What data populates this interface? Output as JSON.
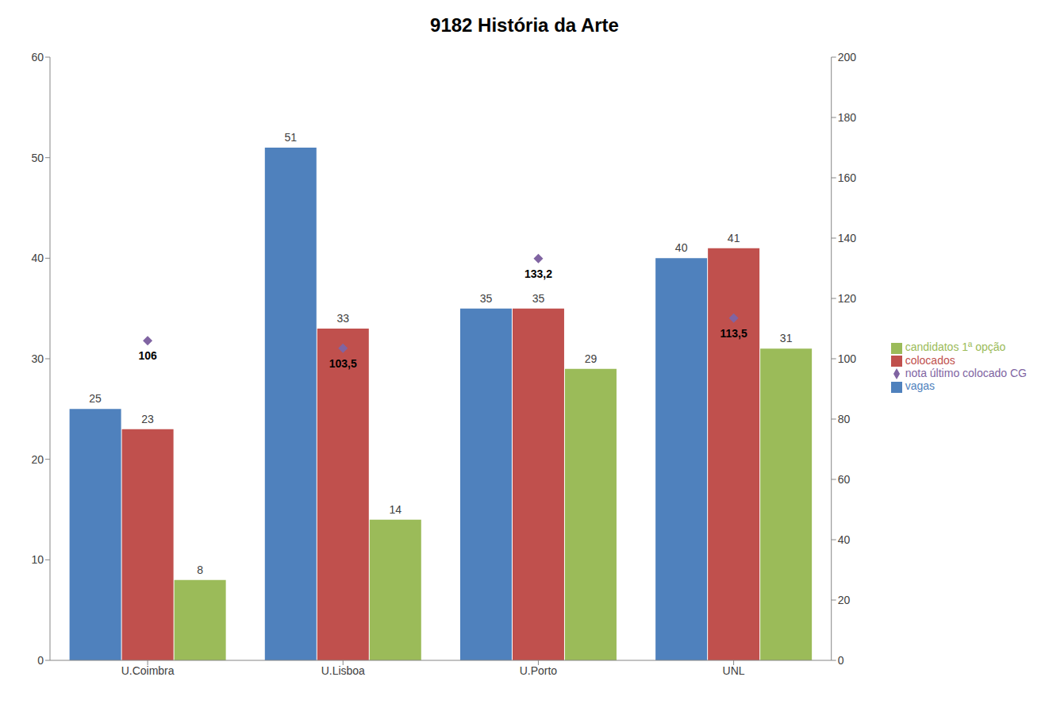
{
  "chart_data": {
    "type": "bar",
    "title": "9182 História da Arte",
    "categories": [
      "U.Coimbra",
      "U.Lisboa",
      "U.Porto",
      "UNL"
    ],
    "series": [
      {
        "name": "vagas",
        "color": "#4f81bd",
        "values": [
          25,
          51,
          35,
          40
        ]
      },
      {
        "name": "colocados",
        "color": "#c0504d",
        "values": [
          23,
          33,
          35,
          41
        ]
      },
      {
        "name": "candidatos 1ª opção",
        "color": "#9bbb59",
        "values": [
          8,
          14,
          29,
          31
        ]
      },
      {
        "name": "nota último colocado CG",
        "color": "#8064a2",
        "values": [
          106,
          103.5,
          133.2,
          113.5
        ],
        "type": "scatter",
        "axis": "y2",
        "marker": "diamond",
        "value_labels": [
          "106",
          "103,5",
          "133,2",
          "113,5"
        ]
      }
    ],
    "ylim": [
      0,
      60
    ],
    "yticks": [
      0,
      10,
      20,
      30,
      40,
      50,
      60
    ],
    "y2lim": [
      0,
      200
    ],
    "y2ticks": [
      0,
      20,
      40,
      60,
      80,
      100,
      120,
      140,
      160,
      180,
      200
    ],
    "grid": false,
    "legend": "right",
    "data_labels": true
  }
}
